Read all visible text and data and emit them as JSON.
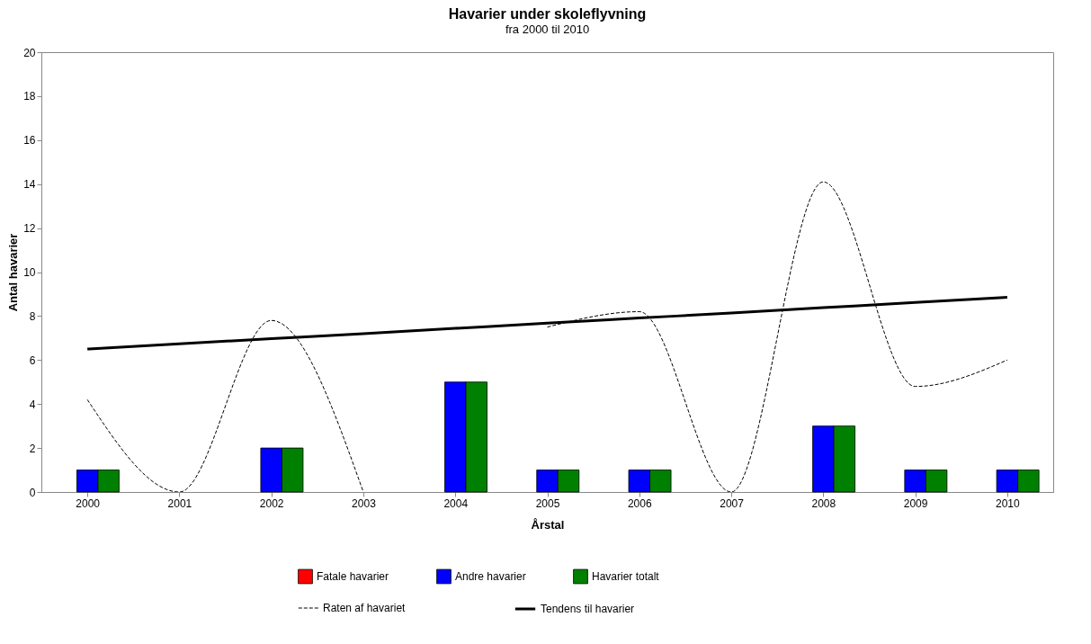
{
  "chart_data": {
    "type": "bar",
    "title": "Havarier under skoleflyvning",
    "subtitle": "fra 2000 til 2010",
    "xlabel": "Årstal",
    "ylabel": "Antal havarier",
    "categories": [
      "2000",
      "2001",
      "2002",
      "2003",
      "2004",
      "2005",
      "2006",
      "2007",
      "2008",
      "2009",
      "2010"
    ],
    "series": [
      {
        "name": "Fatale havarier",
        "color": "#ff0000",
        "values": [
          0,
          0,
          0,
          0,
          0,
          0,
          0,
          0,
          0,
          0,
          0
        ]
      },
      {
        "name": "Andre havarier",
        "color": "#0000ff",
        "values": [
          1,
          0,
          2,
          0,
          5,
          1,
          1,
          0,
          3,
          1,
          1
        ]
      },
      {
        "name": "Havarier totalt",
        "color": "#008000",
        "values": [
          1,
          0,
          2,
          0,
          5,
          1,
          1,
          0,
          3,
          1,
          1
        ]
      },
      {
        "name": "Raten af havariet",
        "type": "line",
        "line_style": "dashed",
        "color": "#000000",
        "values": [
          4.2,
          0,
          7.8,
          0,
          null,
          7.5,
          8.2,
          0,
          14.1,
          4.8,
          6.0
        ]
      },
      {
        "name": "Tendens til havarier",
        "type": "line",
        "line_style": "solid",
        "color": "#000000",
        "values": [
          6.5,
          6.74,
          6.97,
          7.2,
          7.44,
          7.68,
          7.91,
          8.14,
          8.38,
          8.62,
          8.85
        ]
      }
    ],
    "ylim": [
      0,
      20
    ],
    "yticks": [
      0,
      2,
      4,
      6,
      8,
      10,
      12,
      14,
      16,
      18,
      20
    ],
    "grid": false,
    "legend": "bottom",
    "marker": "none"
  }
}
